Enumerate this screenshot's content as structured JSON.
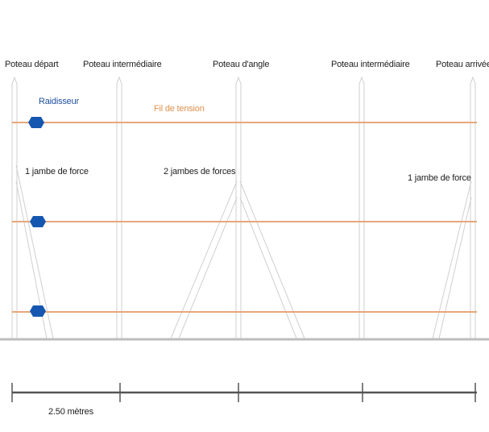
{
  "posts": {
    "start": "Poteau départ",
    "intermediate_1": "Poteau intermédiaire",
    "corner": "Poteau d'angle",
    "intermediate_2": "Poteau intermédiaire",
    "end": "Poteau arrivée"
  },
  "annotations": {
    "tensioner": "Raidisseur",
    "tension_wire": "Fil de tension",
    "brace_start": "1 jambe de force",
    "brace_corner": "2 jambes de forces",
    "brace_end": "1 jambe de force"
  },
  "scale": {
    "label": "2.50 mètres"
  },
  "colors": {
    "wire": "#e8a77a",
    "tensioner": "#1557b0",
    "post_outline": "#c8c8c8",
    "ground": "#bdbdbd",
    "scale_line": "#555555"
  }
}
